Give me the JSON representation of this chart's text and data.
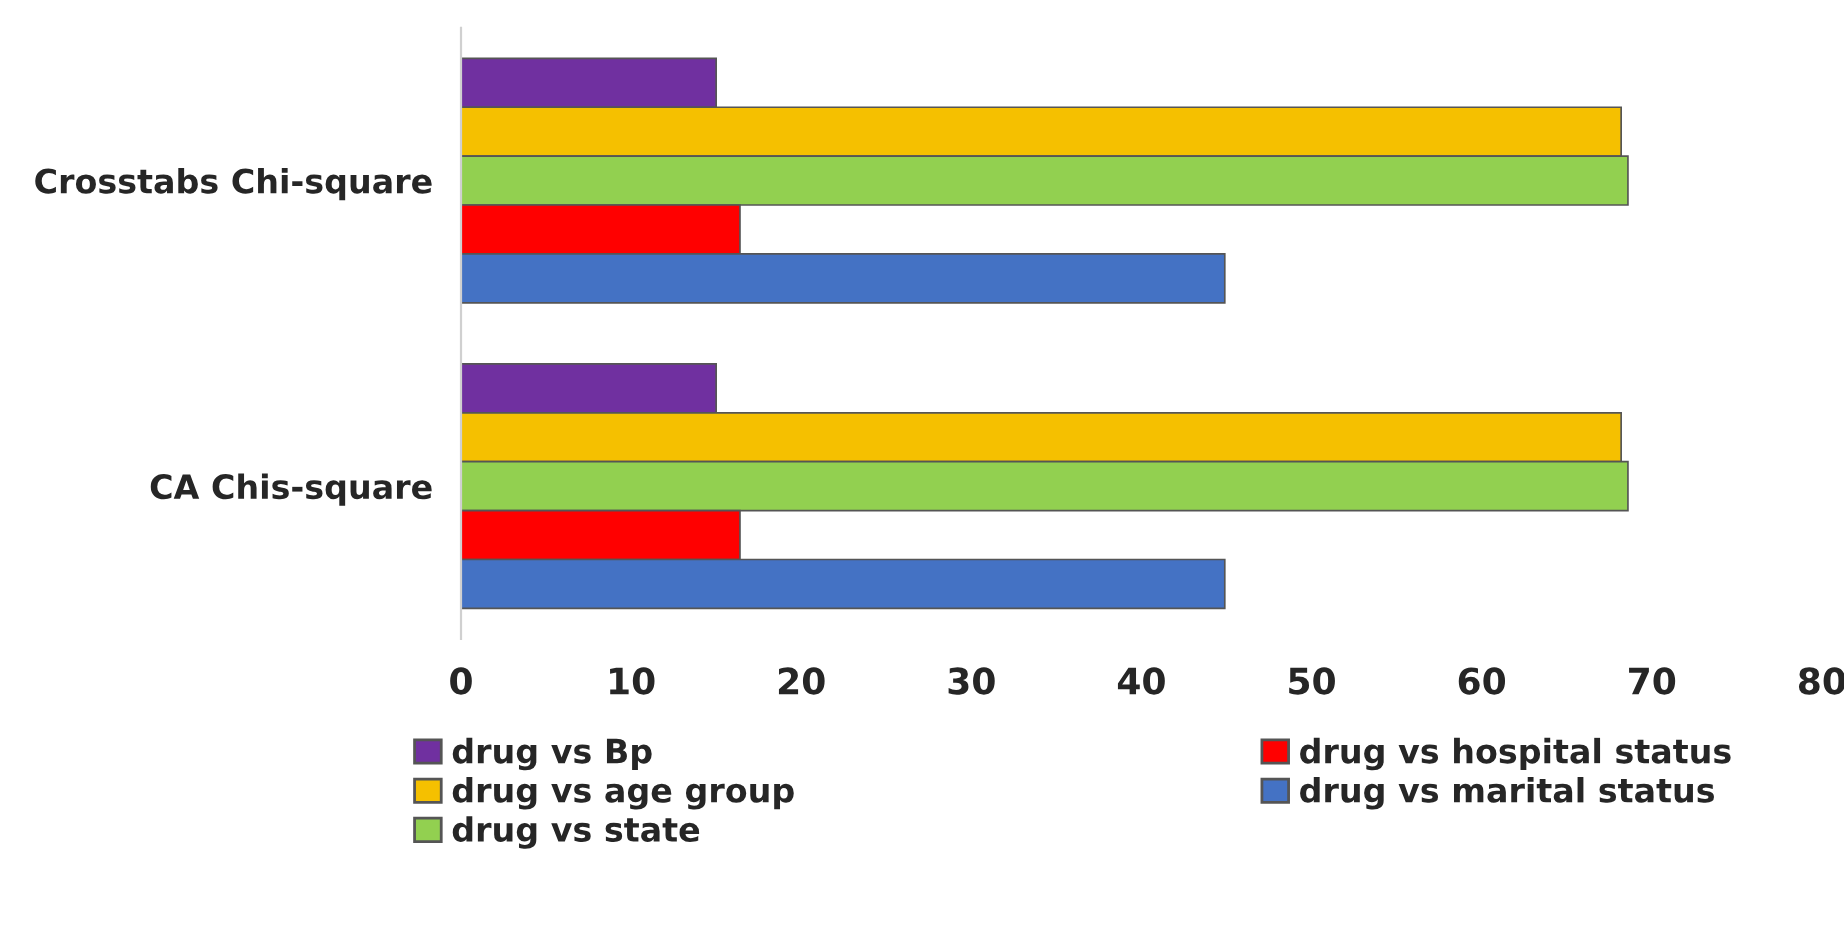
{
  "chart_data": {
    "type": "bar",
    "orientation": "horizontal",
    "categories": [
      "Crosstabs Chi-square",
      "CA Chis-square"
    ],
    "series": [
      {
        "name": "drug vs Bp",
        "color": "#7030a0",
        "values": [
          15,
          15
        ]
      },
      {
        "name": "drug vs age group",
        "color": "#f5c000",
        "values": [
          68.2,
          68.2
        ]
      },
      {
        "name": "drug vs state",
        "color": "#92d050",
        "values": [
          68.6,
          68.6
        ]
      },
      {
        "name": "drug vs hospital status",
        "color": "#ff0000",
        "values": [
          16.4,
          16.4
        ]
      },
      {
        "name": "drug vs marital status",
        "color": "#4472c4",
        "values": [
          44.9,
          44.9
        ]
      }
    ],
    "xlim": [
      0,
      80
    ],
    "xticks": [
      0,
      10,
      20,
      30,
      40,
      50,
      60,
      70,
      80
    ],
    "grid": false,
    "legend": "bottom"
  }
}
